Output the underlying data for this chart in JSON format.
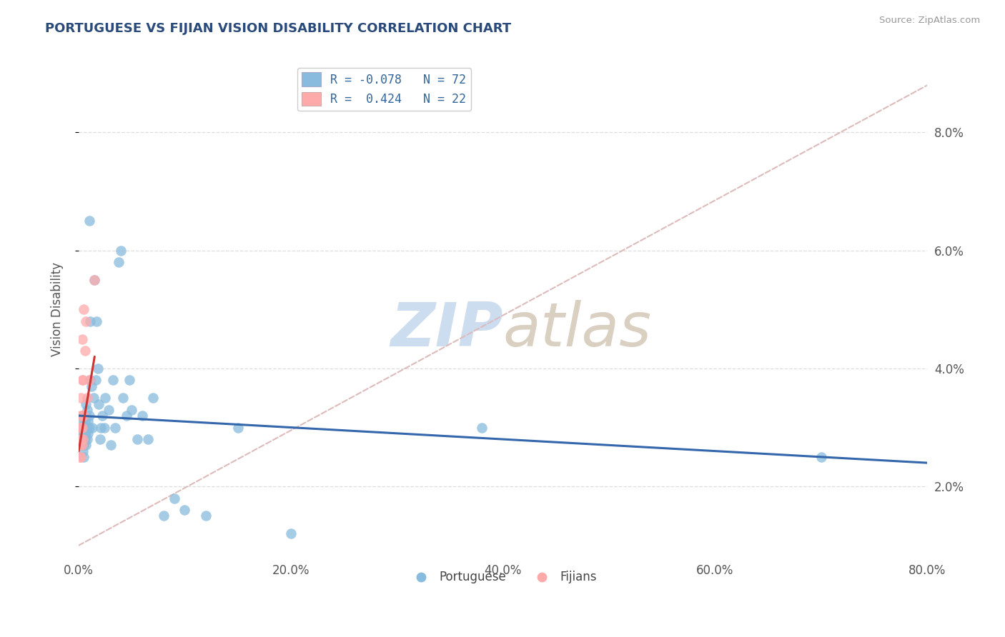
{
  "title": "PORTUGUESE VS FIJIAN VISION DISABILITY CORRELATION CHART",
  "source": "Source: ZipAtlas.com",
  "ylabel": "Vision Disability",
  "xlabel": "",
  "xlim": [
    0.0,
    0.8
  ],
  "ylim": [
    0.008,
    0.092
  ],
  "yticks": [
    0.02,
    0.04,
    0.06,
    0.08
  ],
  "ytick_labels": [
    "2.0%",
    "4.0%",
    "6.0%",
    "8.0%"
  ],
  "xticks": [
    0.0,
    0.2,
    0.4,
    0.6,
    0.8
  ],
  "xtick_labels": [
    "0.0%",
    "20.0%",
    "40.0%",
    "60.0%",
    "80.0%"
  ],
  "legend_labels": [
    "Portuguese",
    "Fijians"
  ],
  "legend_R": [
    "R = -0.078",
    "R =  0.424"
  ],
  "legend_N": [
    "N = 72",
    "N = 22"
  ],
  "blue_color": "#88bbdd",
  "pink_color": "#ffaaaa",
  "blue_line_color": "#3366aa",
  "pink_line_color": "#cc3333",
  "diag_line_color": "#ddbbbb",
  "watermark_zip": "ZIP",
  "watermark_atlas": "atlas",
  "portuguese_x": [
    0.001,
    0.001,
    0.002,
    0.002,
    0.002,
    0.002,
    0.003,
    0.003,
    0.003,
    0.003,
    0.003,
    0.004,
    0.004,
    0.004,
    0.004,
    0.005,
    0.005,
    0.005,
    0.005,
    0.005,
    0.005,
    0.006,
    0.006,
    0.006,
    0.007,
    0.007,
    0.007,
    0.008,
    0.008,
    0.008,
    0.009,
    0.009,
    0.01,
    0.01,
    0.01,
    0.011,
    0.011,
    0.012,
    0.013,
    0.014,
    0.015,
    0.016,
    0.017,
    0.018,
    0.019,
    0.02,
    0.021,
    0.022,
    0.024,
    0.025,
    0.028,
    0.03,
    0.032,
    0.034,
    0.038,
    0.04,
    0.042,
    0.045,
    0.048,
    0.05,
    0.055,
    0.06,
    0.065,
    0.07,
    0.08,
    0.09,
    0.1,
    0.12,
    0.15,
    0.2,
    0.38,
    0.7
  ],
  "portuguese_y": [
    0.027,
    0.028,
    0.027,
    0.028,
    0.029,
    0.03,
    0.027,
    0.028,
    0.029,
    0.03,
    0.031,
    0.026,
    0.028,
    0.03,
    0.032,
    0.025,
    0.027,
    0.028,
    0.029,
    0.03,
    0.032,
    0.028,
    0.03,
    0.031,
    0.027,
    0.029,
    0.034,
    0.028,
    0.03,
    0.033,
    0.029,
    0.031,
    0.03,
    0.032,
    0.065,
    0.038,
    0.048,
    0.037,
    0.03,
    0.035,
    0.055,
    0.038,
    0.048,
    0.04,
    0.034,
    0.028,
    0.03,
    0.032,
    0.03,
    0.035,
    0.033,
    0.027,
    0.038,
    0.03,
    0.058,
    0.06,
    0.035,
    0.032,
    0.038,
    0.033,
    0.028,
    0.032,
    0.028,
    0.035,
    0.015,
    0.018,
    0.016,
    0.015,
    0.03,
    0.012,
    0.03,
    0.025
  ],
  "fijian_x": [
    0.001,
    0.001,
    0.001,
    0.002,
    0.002,
    0.002,
    0.002,
    0.002,
    0.003,
    0.003,
    0.003,
    0.003,
    0.003,
    0.004,
    0.004,
    0.005,
    0.005,
    0.006,
    0.007,
    0.008,
    0.01,
    0.015
  ],
  "fijian_y": [
    0.025,
    0.027,
    0.03,
    0.025,
    0.028,
    0.03,
    0.032,
    0.035,
    0.027,
    0.03,
    0.032,
    0.038,
    0.045,
    0.028,
    0.038,
    0.032,
    0.05,
    0.043,
    0.048,
    0.035,
    0.038,
    0.055
  ],
  "blue_trend_x": [
    0.0,
    0.8
  ],
  "blue_trend_y": [
    0.032,
    0.024
  ],
  "pink_trend_x": [
    0.0,
    0.015
  ],
  "pink_trend_y": [
    0.026,
    0.042
  ]
}
